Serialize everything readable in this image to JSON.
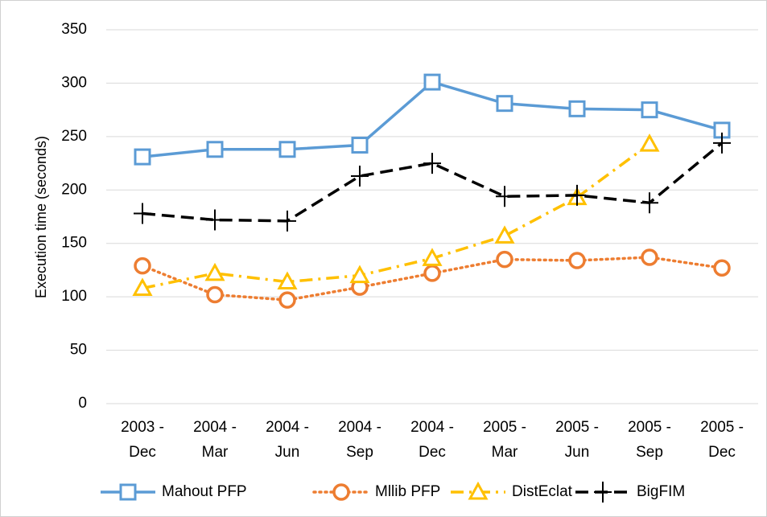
{
  "chart_data": {
    "type": "line",
    "y_label": "Execution time (seconds)",
    "categories": [
      [
        "2003 -",
        "Dec"
      ],
      [
        "2004 -",
        "Mar"
      ],
      [
        "2004 -",
        "Jun"
      ],
      [
        "2004 -",
        "Sep"
      ],
      [
        "2004 -",
        "Dec"
      ],
      [
        "2005 -",
        "Mar"
      ],
      [
        "2005 -",
        "Jun"
      ],
      [
        "2005 -",
        "Sep"
      ],
      [
        "2005 -",
        "Dec"
      ]
    ],
    "series": [
      {
        "name": "Mahout PFP",
        "color": "#5b9bd5",
        "line_style": "solid",
        "marker": "square",
        "values": [
          231,
          238,
          238,
          242,
          301,
          281,
          276,
          275,
          256
        ]
      },
      {
        "name": "Mllib PFP",
        "color": "#ed7d31",
        "line_style": "dotted",
        "marker": "circle",
        "values": [
          129,
          102,
          97,
          109,
          122,
          135,
          134,
          137,
          127
        ]
      },
      {
        "name": "DistEclat",
        "color": "#ffc000",
        "line_style": "dashdot",
        "marker": "triangle",
        "values": [
          108,
          122,
          114,
          120,
          136,
          157,
          193,
          243,
          null
        ]
      },
      {
        "name": "BigFIM",
        "color": "#000000",
        "line_style": "dashed",
        "marker": "plus",
        "values": [
          178,
          172,
          171,
          213,
          225,
          194,
          195,
          188,
          244
        ]
      }
    ],
    "ylim": [
      0,
      350
    ],
    "yticks": [
      0,
      50,
      100,
      150,
      200,
      250,
      300,
      350
    ],
    "grid": true,
    "legend": "bottom"
  }
}
